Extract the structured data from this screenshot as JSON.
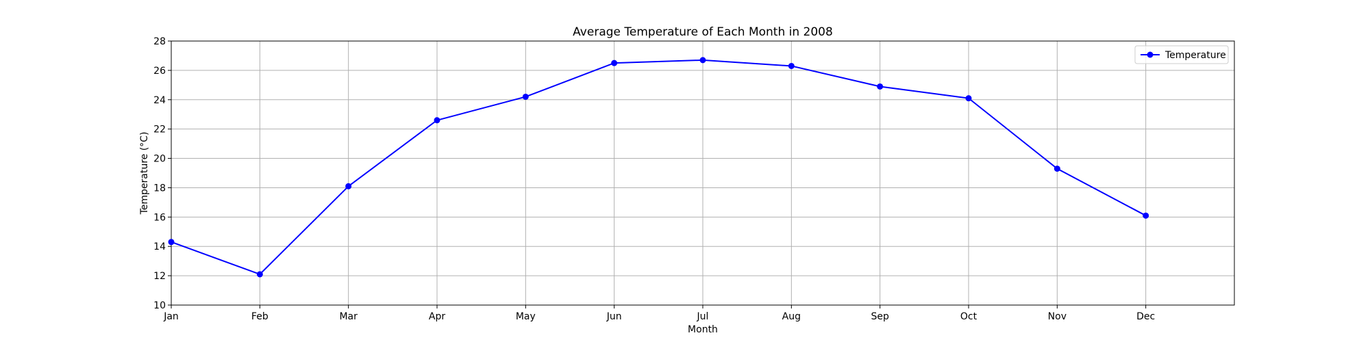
{
  "chart_data": {
    "type": "line",
    "title": "Average Temperature of Each Month in 2008",
    "xlabel": "Month",
    "ylabel": "Temperature (°C)",
    "categories": [
      "Jan",
      "Feb",
      "Mar",
      "Apr",
      "May",
      "Jun",
      "Jul",
      "Aug",
      "Sep",
      "Oct",
      "Nov",
      "Dec"
    ],
    "series": [
      {
        "name": "Temperature",
        "values": [
          14.3,
          12.1,
          18.1,
          22.6,
          24.2,
          26.5,
          26.7,
          26.3,
          24.9,
          24.1,
          19.3,
          16.1
        ],
        "color": "#0000ff",
        "marker": "circle"
      }
    ],
    "xlim": [
      0,
      12
    ],
    "ylim": [
      10,
      28
    ],
    "yticks": [
      10,
      12,
      14,
      16,
      18,
      20,
      22,
      24,
      26,
      28
    ],
    "grid": true,
    "legend_position": "top-right"
  }
}
